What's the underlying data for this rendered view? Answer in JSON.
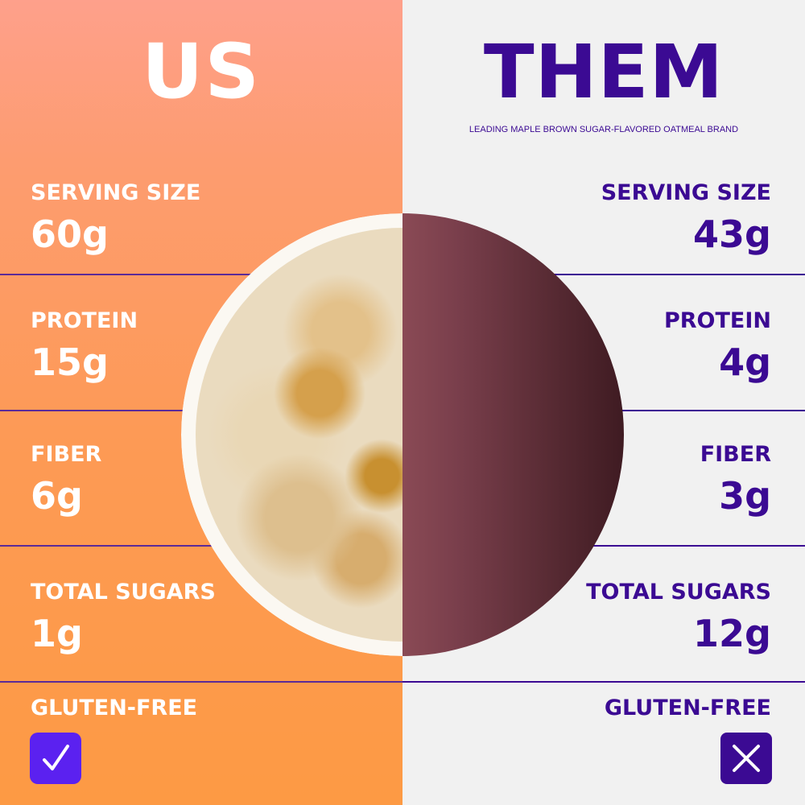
{
  "us": {
    "title": "US",
    "rows": [
      {
        "label": "SERVING SIZE",
        "value": "60g"
      },
      {
        "label": "PROTEIN",
        "value": "15g"
      },
      {
        "label": "FIBER",
        "value": "6g"
      },
      {
        "label": "TOTAL SUGARS",
        "value": "1g"
      }
    ],
    "gluten_label": "GLUTEN-FREE",
    "gluten_icon": "check-icon"
  },
  "them": {
    "title": "THEM",
    "subtitle": "LEADING MAPLE BROWN SUGAR-FLAVORED OATMEAL BRAND",
    "rows": [
      {
        "label": "SERVING SIZE",
        "value": "43g"
      },
      {
        "label": "PROTEIN",
        "value": "4g"
      },
      {
        "label": "FIBER",
        "value": "3g"
      },
      {
        "label": "TOTAL SUGARS",
        "value": "12g"
      }
    ],
    "gluten_label": "GLUTEN-FREE",
    "gluten_icon": "x-icon"
  },
  "colors": {
    "us_bg": "#fd9a55",
    "them_text": "#3b0a93",
    "them_bg": "#f1f1f1",
    "check_bg": "#5b21f0",
    "competitor_bowl": "#6e3641"
  }
}
